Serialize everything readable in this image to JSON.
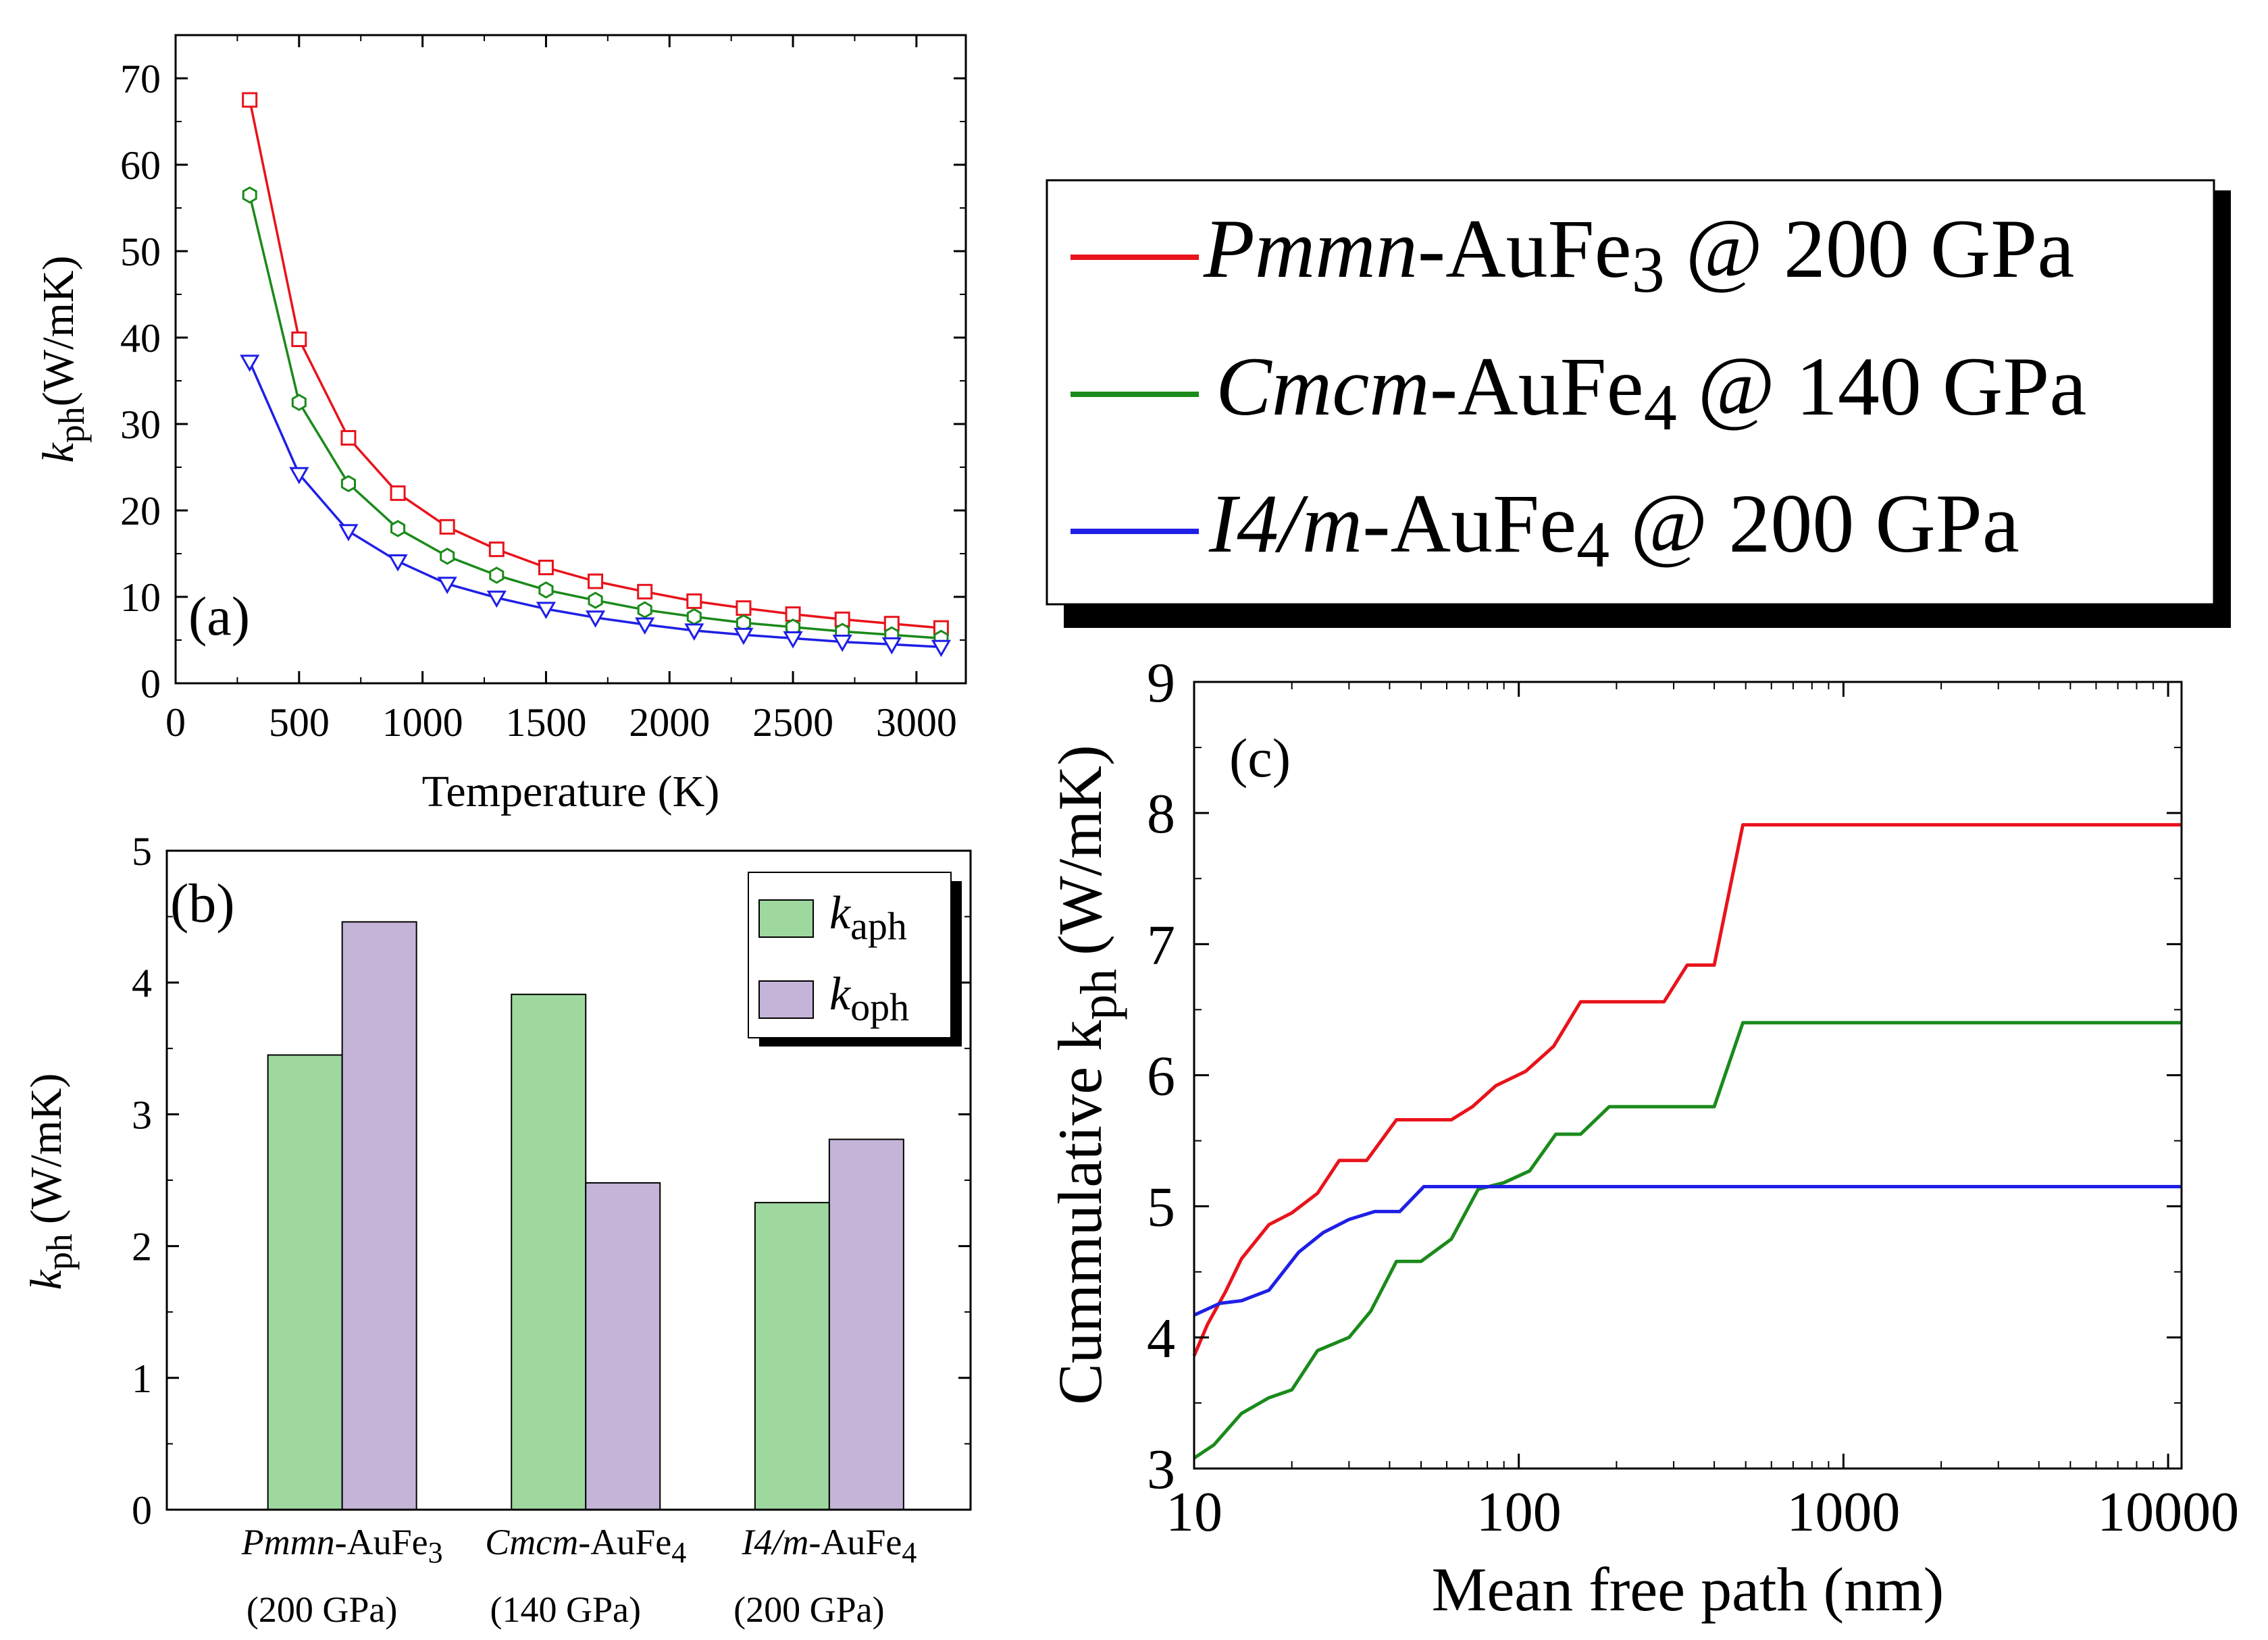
{
  "colors": {
    "red": "#e8131b",
    "green": "#1a8a1a",
    "blue": "#1f1fe6",
    "bar_aph": "#9fd89f",
    "bar_oph": "#c4b4d8",
    "axis": "#000000"
  },
  "legend_main": {
    "entries": [
      {
        "name": "Pmmn",
        "compound": "-AuFe",
        "sub": "3",
        "pressure": " @ 200 GPa",
        "color": "red"
      },
      {
        "name": "Cmcm",
        "compound": "-AuFe",
        "sub": "4",
        "pressure": " @ 140 GPa",
        "color": "green"
      },
      {
        "name": "I4/m",
        "compound": "-AuFe",
        "sub": "4",
        "pressure": " @ 200 GPa",
        "color": "blue"
      }
    ]
  },
  "chart_data": [
    {
      "id": "a",
      "type": "line",
      "panel_label": "(a)",
      "xlabel": "Temperature (K)",
      "ylabel_main": "k",
      "ylabel_sub": "ph",
      "ylabel_unit": "(W/mK)",
      "xlim": [
        0,
        3200
      ],
      "ylim": [
        0,
        75
      ],
      "xticks": [
        0,
        500,
        1000,
        1500,
        2000,
        2500,
        3000
      ],
      "yticks": [
        0,
        10,
        20,
        30,
        40,
        50,
        60,
        70
      ],
      "x": [
        300,
        500,
        700,
        900,
        1100,
        1300,
        1500,
        1700,
        1900,
        2100,
        2300,
        2500,
        2700,
        2900,
        3100
      ],
      "series": [
        {
          "name": "Pmmn-AuFe3 @ 200 GPa",
          "color": "red",
          "marker": "square",
          "values": [
            67.5,
            39.8,
            28.4,
            22.0,
            18.1,
            15.5,
            13.4,
            11.8,
            10.6,
            9.5,
            8.7,
            8.0,
            7.4,
            6.9,
            6.4
          ]
        },
        {
          "name": "Cmcm-AuFe4 @ 140 GPa",
          "color": "green",
          "marker": "hexagon",
          "values": [
            56.5,
            32.5,
            23.1,
            17.9,
            14.7,
            12.5,
            10.8,
            9.6,
            8.5,
            7.7,
            7.0,
            6.5,
            6.0,
            5.6,
            5.2
          ]
        },
        {
          "name": "I4/m-AuFe4 @ 200 GPa",
          "color": "blue",
          "marker": "triangle-down",
          "values": [
            37.2,
            24.2,
            17.6,
            14.1,
            11.5,
            9.9,
            8.6,
            7.6,
            6.8,
            6.1,
            5.6,
            5.2,
            4.8,
            4.5,
            4.2
          ]
        }
      ]
    },
    {
      "id": "b",
      "type": "bar",
      "panel_label": "(b)",
      "ylabel_main": "k",
      "ylabel_sub": "ph",
      "ylabel_unit": "(W/mK)",
      "ylim": [
        0,
        5
      ],
      "yticks": [
        0,
        1,
        2,
        3,
        4,
        5
      ],
      "categories": [
        {
          "name": "Pmmn",
          "compound": "-AuFe",
          "sub": "3",
          "pressure": "(200 GPa)"
        },
        {
          "name": "Cmcm",
          "compound": "-AuFe",
          "sub": "4",
          "pressure": "(140 GPa)"
        },
        {
          "name": "I4/m",
          "compound": "-AuFe",
          "sub": "4",
          "pressure": "(200 GPa)"
        }
      ],
      "series": [
        {
          "name": "k_aph",
          "label_main": "k",
          "label_sub": "aph",
          "color": "bar_aph",
          "values": [
            3.45,
            3.91,
            2.33
          ]
        },
        {
          "name": "k_oph",
          "label_main": "k",
          "label_sub": "oph",
          "color": "bar_oph",
          "values": [
            4.46,
            2.48,
            2.81
          ]
        }
      ]
    },
    {
      "id": "c",
      "type": "line",
      "panel_label": "(c)",
      "xlabel": "Mean free path (nm)",
      "ylabel_main": "Cummulative k",
      "ylabel_sub": "ph",
      "ylabel_unit": "(W/mK)",
      "xscale": "log",
      "xlim": [
        10,
        11000
      ],
      "ylim": [
        3,
        9
      ],
      "xticks": [
        10,
        100,
        1000,
        10000
      ],
      "yticks": [
        3,
        4,
        5,
        6,
        7,
        8,
        9
      ],
      "series": [
        {
          "name": "Pmmn-AuFe3 @ 200 GPa",
          "color": "red",
          "points": [
            [
              10,
              3.86
            ],
            [
              11,
              4.1
            ],
            [
              12.5,
              4.35
            ],
            [
              14,
              4.6
            ],
            [
              17,
              4.86
            ],
            [
              20,
              4.95
            ],
            [
              24,
              5.1
            ],
            [
              28,
              5.35
            ],
            [
              34,
              5.35
            ],
            [
              42,
              5.66
            ],
            [
              50,
              5.66
            ],
            [
              62,
              5.66
            ],
            [
              72,
              5.76
            ],
            [
              85,
              5.92
            ],
            [
              105,
              6.03
            ],
            [
              128,
              6.22
            ],
            [
              155,
              6.56
            ],
            [
              200,
              6.56
            ],
            [
              280,
              6.56
            ],
            [
              330,
              6.84
            ],
            [
              400,
              6.84
            ],
            [
              490,
              7.91
            ],
            [
              700,
              7.91
            ],
            [
              11000,
              7.91
            ]
          ]
        },
        {
          "name": "Cmcm-AuFe4 @ 140 GPa",
          "color": "green",
          "points": [
            [
              10,
              3.08
            ],
            [
              11.5,
              3.18
            ],
            [
              14,
              3.42
            ],
            [
              17,
              3.54
            ],
            [
              20,
              3.6
            ],
            [
              24,
              3.9
            ],
            [
              30,
              4.0
            ],
            [
              35,
              4.2
            ],
            [
              42,
              4.58
            ],
            [
              50,
              4.58
            ],
            [
              62,
              4.75
            ],
            [
              75,
              5.13
            ],
            [
              90,
              5.18
            ],
            [
              108,
              5.27
            ],
            [
              130,
              5.55
            ],
            [
              155,
              5.55
            ],
            [
              190,
              5.76
            ],
            [
              260,
              5.76
            ],
            [
              400,
              5.76
            ],
            [
              490,
              6.4
            ],
            [
              700,
              6.4
            ],
            [
              11000,
              6.4
            ]
          ]
        },
        {
          "name": "I4/m-AuFe4 @ 200 GPa",
          "color": "blue",
          "points": [
            [
              10,
              4.17
            ],
            [
              12,
              4.26
            ],
            [
              14,
              4.28
            ],
            [
              17,
              4.36
            ],
            [
              21,
              4.65
            ],
            [
              25,
              4.8
            ],
            [
              30,
              4.9
            ],
            [
              36,
              4.96
            ],
            [
              43,
              4.96
            ],
            [
              51,
              5.15
            ],
            [
              60,
              5.15
            ],
            [
              11000,
              5.15
            ]
          ]
        }
      ]
    }
  ]
}
